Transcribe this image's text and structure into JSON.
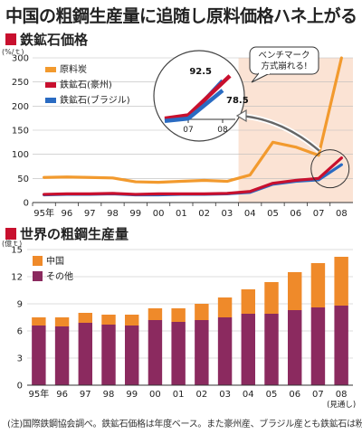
{
  "title": "中国の粗鋼生産量に追随し原料価格ハネ上がる",
  "note": "(注)国際鉄鋼協会調べ。鉄鉱石価格は年度ベース。また豪州産、ブラジル産とも鉄鉱石は粉鉱",
  "colors": {
    "coal": "#f29a2e",
    "iron_aus": "#c8102e",
    "iron_brazil": "#2a6bc2",
    "china": "#ef8a2a",
    "other": "#8b2a5f",
    "accent": "#c8102e",
    "band": "#fbe3d4"
  },
  "chart_data": [
    {
      "type": "line",
      "title": "鉄鉱石価格",
      "yunit": "(%/ｔ)",
      "categories": [
        "95年",
        "96",
        "97",
        "98",
        "99",
        "00",
        "01",
        "02",
        "03",
        "04",
        "05",
        "06",
        "07",
        "08"
      ],
      "ylim": [
        0,
        300
      ],
      "yticks": [
        0,
        50,
        100,
        150,
        200,
        250,
        300
      ],
      "legend_position": "top-left",
      "series": [
        {
          "name": "原料炭",
          "values": [
            52,
            53,
            52,
            51,
            43,
            42,
            44,
            46,
            44,
            57,
            125,
            115,
            98,
            300
          ]
        },
        {
          "name": "鉄鉱石(豪州)",
          "values": [
            17,
            18,
            18,
            19,
            17,
            18,
            18,
            18,
            19,
            23,
            40,
            46,
            50,
            92.5
          ]
        },
        {
          "name": "鉄鉱石(ブラジル)",
          "values": [
            16,
            17,
            17,
            18,
            16,
            16,
            17,
            17,
            18,
            21,
            38,
            44,
            47,
            78.5
          ]
        }
      ],
      "inset": {
        "categories": [
          "07",
          "08"
        ],
        "label_aus": "92.5",
        "label_brazil": "78.5",
        "callout": "ベンチマーク\n方式崩れる!"
      }
    },
    {
      "type": "bar",
      "stacked": true,
      "title": "世界の粗鋼生産量",
      "yunit": "(億ｔ)",
      "categories": [
        "95年",
        "96",
        "97",
        "98",
        "99",
        "00",
        "01",
        "02",
        "03",
        "04",
        "05",
        "06",
        "07",
        "08"
      ],
      "last_category_note": "(見通し)",
      "ylim": [
        0,
        15
      ],
      "yticks": [
        0,
        3,
        6,
        9,
        12,
        15
      ],
      "legend_position": "top-left",
      "series": [
        {
          "name": "中国",
          "values": [
            0.9,
            1.0,
            1.1,
            1.1,
            1.2,
            1.3,
            1.5,
            1.8,
            2.2,
            2.7,
            3.5,
            4.2,
            4.9,
            5.4
          ]
        },
        {
          "name": "その他",
          "values": [
            6.6,
            6.5,
            6.9,
            6.7,
            6.6,
            7.2,
            7.0,
            7.2,
            7.5,
            7.9,
            7.9,
            8.3,
            8.6,
            8.8
          ]
        }
      ]
    }
  ]
}
